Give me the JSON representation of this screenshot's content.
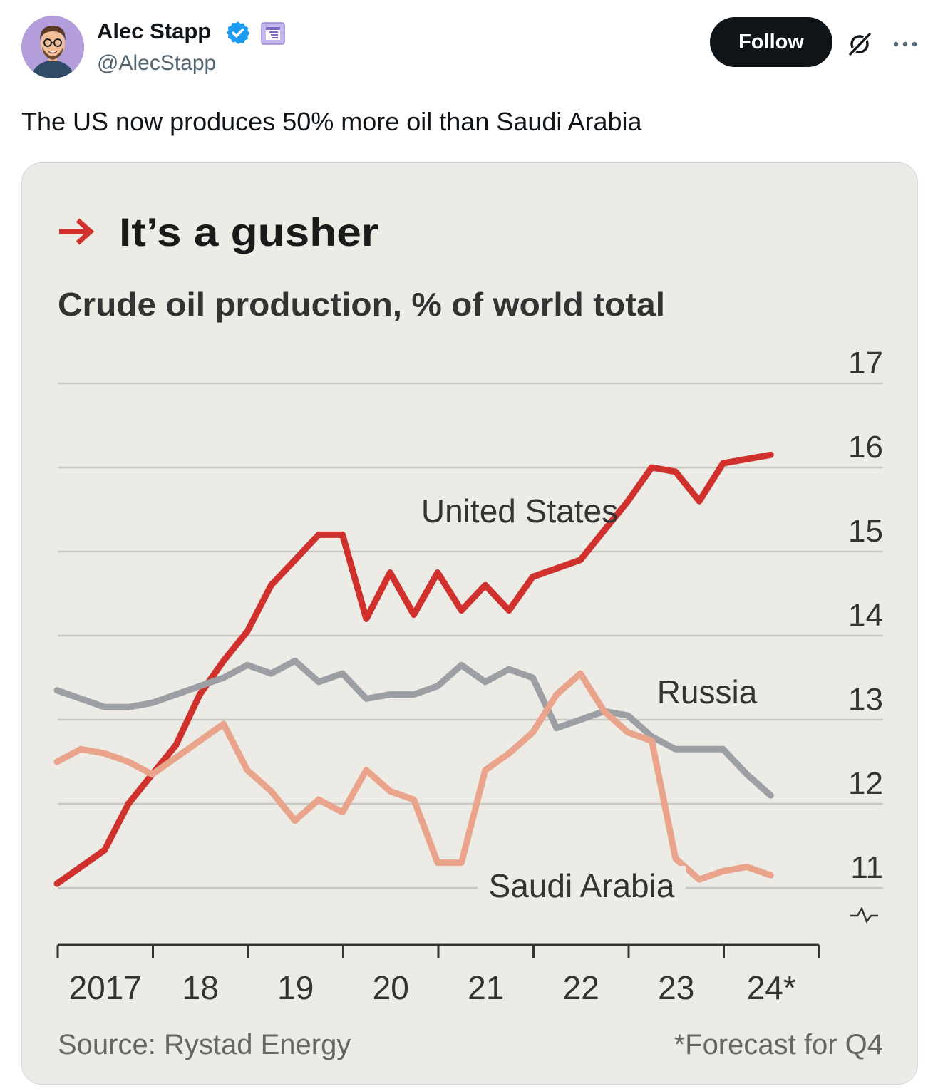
{
  "user": {
    "name": "Alec Stapp",
    "handle": "@AlecStapp",
    "follow_label": "Follow"
  },
  "tweet": {
    "text": "The US now produces 50% more oil than Saudi Arabia"
  },
  "icons": {
    "verified": "verified-badge-icon",
    "affiliation": "affiliate-badge-icon",
    "grok": "grok-icon",
    "more": "more-icon"
  },
  "colors": {
    "follow_bg": "#0f1419",
    "verified": "#1d9bf0",
    "us": "#d0312d",
    "russia": "#9c9fa4",
    "saudi": "#eba48c",
    "chart_bg": "#ecebe6"
  },
  "chart_data": {
    "type": "line",
    "title": "It’s a gusher",
    "subtitle": "Crude oil production, % of world total",
    "x_ticks": [
      "2017",
      "18",
      "19",
      "20",
      "21",
      "22",
      "23",
      "24*"
    ],
    "y_ticks": [
      "17",
      "16",
      "15",
      "14",
      "13",
      "12",
      "11"
    ],
    "ylim": [
      10.5,
      17
    ],
    "axis_break": true,
    "grid": true,
    "source": "Source: Rystad Energy",
    "footnote": "*Forecast for Q4",
    "series": [
      {
        "name": "United States",
        "color": "#d0312d",
        "x": [
          2017.0,
          2017.5,
          2017.75,
          2018.0,
          2018.25,
          2018.5,
          2018.75,
          2019.0,
          2019.25,
          2019.5,
          2019.75,
          2020.0,
          2020.25,
          2020.5,
          2020.75,
          2021.0,
          2021.25,
          2021.5,
          2021.75,
          2022.0,
          2022.25,
          2022.5,
          2022.75,
          2023.0,
          2023.25,
          2023.5,
          2023.75,
          2024.0,
          2024.25,
          2024.5
        ],
        "values": [
          11.05,
          11.45,
          12.0,
          12.35,
          12.7,
          13.3,
          13.7,
          14.05,
          14.6,
          14.9,
          15.2,
          15.2,
          14.2,
          14.75,
          14.25,
          14.75,
          14.3,
          14.6,
          14.3,
          14.7,
          14.8,
          14.9,
          15.25,
          15.6,
          16.0,
          15.95,
          15.6,
          16.05,
          16.1,
          16.15
        ]
      },
      {
        "name": "Russia",
        "color": "#9c9fa4",
        "x": [
          2017.0,
          2017.25,
          2017.5,
          2017.75,
          2018.0,
          2018.25,
          2018.5,
          2018.75,
          2019.0,
          2019.25,
          2019.5,
          2019.75,
          2020.0,
          2020.25,
          2020.5,
          2020.75,
          2021.0,
          2021.25,
          2021.5,
          2021.75,
          2022.0,
          2022.25,
          2022.5,
          2022.75,
          2023.0,
          2023.25,
          2023.5,
          2023.75,
          2024.0,
          2024.25,
          2024.5
        ],
        "values": [
          13.35,
          13.25,
          13.15,
          13.15,
          13.2,
          13.3,
          13.4,
          13.5,
          13.65,
          13.55,
          13.7,
          13.45,
          13.55,
          13.25,
          13.3,
          13.3,
          13.4,
          13.65,
          13.45,
          13.6,
          13.5,
          12.9,
          13.0,
          13.1,
          13.05,
          12.8,
          12.65,
          12.65,
          12.65,
          12.35,
          12.1
        ]
      },
      {
        "name": "Saudi Arabia",
        "color": "#eba48c",
        "x": [
          2017.0,
          2017.25,
          2017.5,
          2017.75,
          2018.0,
          2018.25,
          2018.5,
          2018.75,
          2019.0,
          2019.25,
          2019.5,
          2019.75,
          2020.0,
          2020.25,
          2020.5,
          2020.75,
          2021.0,
          2021.25,
          2021.5,
          2021.75,
          2022.0,
          2022.25,
          2022.5,
          2022.75,
          2023.0,
          2023.25,
          2023.5,
          2023.75,
          2024.0,
          2024.25,
          2024.5
        ],
        "values": [
          12.5,
          12.65,
          12.6,
          12.5,
          12.35,
          12.55,
          12.75,
          12.95,
          12.4,
          12.15,
          11.8,
          12.05,
          11.9,
          12.4,
          12.15,
          12.05,
          11.3,
          11.3,
          12.4,
          12.6,
          12.85,
          13.3,
          13.55,
          13.1,
          12.85,
          12.75,
          11.35,
          11.1,
          11.2,
          11.25,
          11.15
        ]
      }
    ]
  }
}
